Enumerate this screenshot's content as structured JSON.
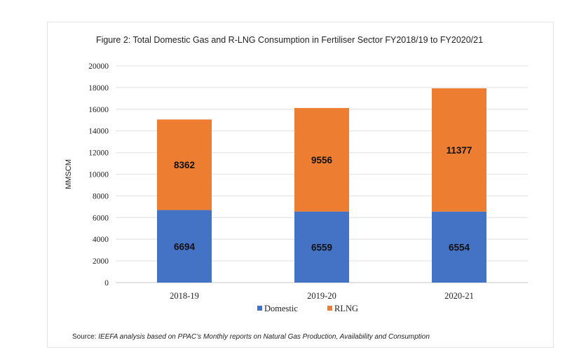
{
  "chart_data": {
    "type": "bar",
    "stacked": true,
    "title": "Figure 2: Total Domestic Gas and R-LNG Consumption in Fertiliser Sector FY2018/19 to FY2020/21",
    "xlabel": "",
    "ylabel": "MMSCM",
    "ylim": [
      0,
      20000
    ],
    "yticks": [
      0,
      2000,
      4000,
      6000,
      8000,
      10000,
      12000,
      14000,
      16000,
      18000,
      20000
    ],
    "grid": true,
    "legend_position": "bottom",
    "categories": [
      "2018-19",
      "2019-20",
      "2020-21"
    ],
    "series": [
      {
        "name": "Domestic",
        "color": "#4472c4",
        "values": [
          6694,
          6559,
          6554
        ]
      },
      {
        "name": "RLNG",
        "color": "#ed7d31",
        "values": [
          8362,
          9556,
          11377
        ]
      }
    ]
  },
  "source": {
    "prefix": "Source: ",
    "text": "IEEFA analysis based on PPAC’s Monthly reports on Natural Gas Production, Availability and Consumption"
  }
}
